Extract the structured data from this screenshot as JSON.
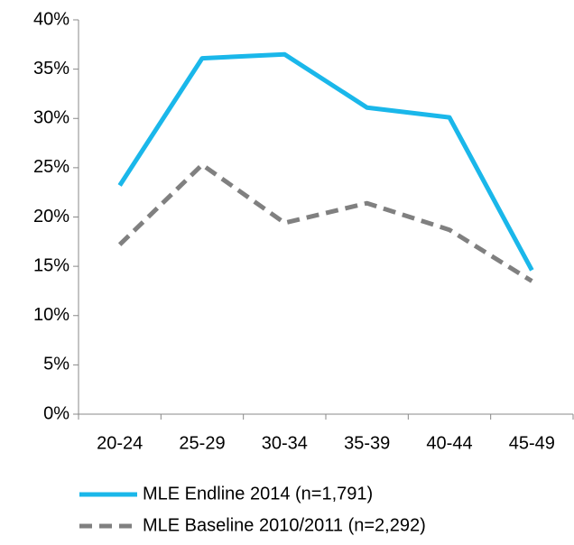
{
  "chart_data": {
    "type": "line",
    "categories": [
      "20-24",
      "25-29",
      "30-34",
      "35-39",
      "40-44",
      "45-49"
    ],
    "series": [
      {
        "name": "MLE Endline 2014 (n=1,791)",
        "color": "#1ab7ea",
        "dash": false,
        "values": [
          23.2,
          36.1,
          36.5,
          31.1,
          30.1,
          14.6
        ]
      },
      {
        "name": "MLE Baseline 2010/2011 (n=2,292)",
        "color": "#808080",
        "dash": true,
        "values": [
          17.2,
          25.3,
          19.4,
          21.4,
          18.7,
          13.5
        ]
      }
    ],
    "ylim": [
      0,
      40
    ],
    "yticks": [
      {
        "value": 0,
        "label": "0%"
      },
      {
        "value": 5,
        "label": "5%"
      },
      {
        "value": 10,
        "label": "10%"
      },
      {
        "value": 15,
        "label": "15%"
      },
      {
        "value": 20,
        "label": "20%"
      },
      {
        "value": 25,
        "label": "25%"
      },
      {
        "value": 30,
        "label": "30%"
      },
      {
        "value": 35,
        "label": "35%"
      },
      {
        "value": 40,
        "label": "40%"
      }
    ],
    "grid": false,
    "legend": "bottom"
  }
}
